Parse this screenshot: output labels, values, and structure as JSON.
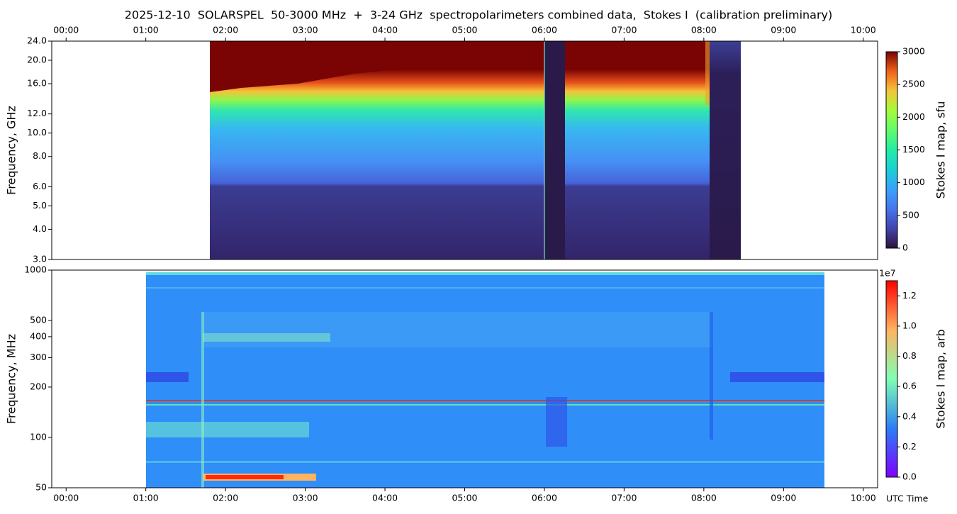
{
  "chart_data": [
    {
      "type": "spectrogram",
      "title": "2025-12-10  SOLARSPEL  50-3000 MHz  +  3-24 GHz  spectropolarimeters combined data,  Stokes I  (calibration preliminary)",
      "ylabel": "Frequency, GHz",
      "ylog": true,
      "xtick_side": "top",
      "xlim": [
        -0.18,
        10.18
      ],
      "xticks": [
        {
          "value": 0,
          "label": "00:00"
        },
        {
          "value": 1,
          "label": "01:00"
        },
        {
          "value": 2,
          "label": "02:00"
        },
        {
          "value": 3,
          "label": "03:00"
        },
        {
          "value": 4,
          "label": "04:00"
        },
        {
          "value": 5,
          "label": "05:00"
        },
        {
          "value": 6,
          "label": "06:00"
        },
        {
          "value": 7,
          "label": "07:00"
        },
        {
          "value": 8,
          "label": "08:00"
        },
        {
          "value": 9,
          "label": "09:00"
        },
        {
          "value": 10,
          "label": "10:00"
        }
      ],
      "ylim": [
        3,
        24
      ],
      "yticks": [
        {
          "value": 3,
          "label": "3.0"
        },
        {
          "value": 4,
          "label": "4.0"
        },
        {
          "value": 5,
          "label": "5.0"
        },
        {
          "value": 6,
          "label": "6.0"
        },
        {
          "value": 8,
          "label": "8.0"
        },
        {
          "value": 10,
          "label": "10.0"
        },
        {
          "value": 12,
          "label": "12.0"
        },
        {
          "value": 16,
          "label": "16.0"
        },
        {
          "value": 20,
          "label": "20.0"
        },
        {
          "value": 24,
          "label": "24.0"
        }
      ],
      "colorbar": {
        "label": "Stokes I map, sfu",
        "colormap": "turbo",
        "lim": [
          0,
          3000
        ],
        "ticks": [
          0,
          500,
          1000,
          1500,
          2000,
          2500,
          3000
        ]
      }
    },
    {
      "type": "spectrogram",
      "ylabel": "Frequency, MHz",
      "xlabel": "UTC Time",
      "ylog": true,
      "xtick_side": "bottom",
      "xlim": [
        -0.18,
        10.18
      ],
      "xticks": [
        {
          "value": 0,
          "label": "00:00"
        },
        {
          "value": 1,
          "label": "01:00"
        },
        {
          "value": 2,
          "label": "02:00"
        },
        {
          "value": 3,
          "label": "03:00"
        },
        {
          "value": 4,
          "label": "04:00"
        },
        {
          "value": 5,
          "label": "05:00"
        },
        {
          "value": 6,
          "label": "06:00"
        },
        {
          "value": 7,
          "label": "07:00"
        },
        {
          "value": 8,
          "label": "08:00"
        },
        {
          "value": 9,
          "label": "09:00"
        },
        {
          "value": 10,
          "label": "10:00"
        }
      ],
      "ylim": [
        50,
        1000
      ],
      "yticks": [
        50,
        100,
        200,
        300,
        400,
        500,
        1000
      ],
      "colorbar": {
        "label": "Stokes I map, arb",
        "colormap": "rainbow",
        "lim": [
          0,
          13000000
        ],
        "offset_label": "1e7",
        "ticks": [
          {
            "value": 0,
            "label": "0.0"
          },
          {
            "value": 2000000,
            "label": "0.2"
          },
          {
            "value": 4000000,
            "label": "0.4"
          },
          {
            "value": 6000000,
            "label": "0.6"
          },
          {
            "value": 8000000,
            "label": "0.8"
          },
          {
            "value": 10000000,
            "label": "1.0"
          },
          {
            "value": 12000000,
            "label": "1.2"
          }
        ]
      }
    }
  ]
}
